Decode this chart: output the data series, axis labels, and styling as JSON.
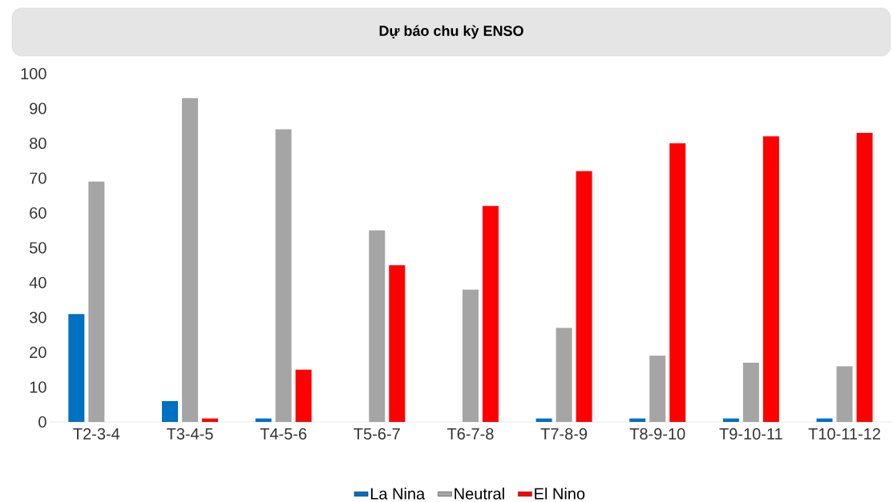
{
  "chart_data": {
    "type": "bar",
    "title": "Dự báo chu kỳ ENSO",
    "categories": [
      "T2-3-4",
      "T3-4-5",
      "T4-5-6",
      "T5-6-7",
      "T6-7-8",
      "T7-8-9",
      "T8-9-10",
      "T9-10-11",
      "T10-11-12"
    ],
    "series": [
      {
        "name": "La Nina",
        "color": "#0070c0",
        "values": [
          31,
          6,
          1,
          0,
          0,
          1,
          1,
          1,
          1
        ]
      },
      {
        "name": "Neutral",
        "color": "#a5a5a5",
        "values": [
          69,
          93,
          84,
          55,
          38,
          27,
          19,
          17,
          16
        ]
      },
      {
        "name": "El Nino",
        "color": "#ff0000",
        "values": [
          0,
          1,
          15,
          45,
          62,
          72,
          80,
          82,
          83
        ]
      }
    ],
    "ylim": [
      0,
      100
    ],
    "yticks": [
      0,
      10,
      20,
      30,
      40,
      50,
      60,
      70,
      80,
      90,
      100
    ],
    "legend": "bottom"
  }
}
